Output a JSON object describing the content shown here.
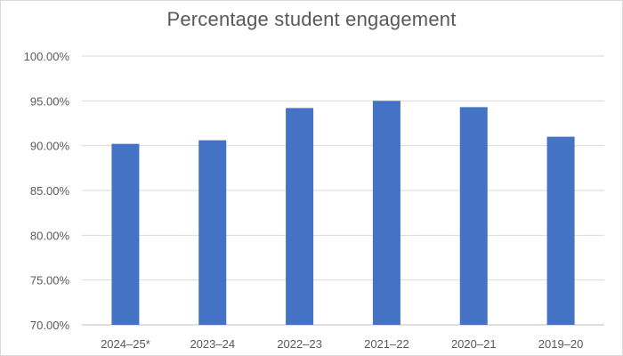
{
  "chart_data": {
    "type": "bar",
    "title": "Percentage student engagement",
    "xlabel": "",
    "ylabel": "",
    "categories": [
      "2024–25*",
      "2023–24",
      "2022–23",
      "2021–22",
      "2020–21",
      "2019–20"
    ],
    "values": [
      90.2,
      90.6,
      94.2,
      95.0,
      94.3,
      91.0
    ],
    "ylim": [
      70,
      100
    ],
    "ytick_step": 5,
    "ytick_labels": [
      "70.00%",
      "75.00%",
      "80.00%",
      "85.00%",
      "90.00%",
      "95.00%",
      "100.00%"
    ],
    "grid": true,
    "legend": "none",
    "bar_color": "#4472c4",
    "grid_color": "#d9d9d9",
    "text_color": "#595959"
  }
}
